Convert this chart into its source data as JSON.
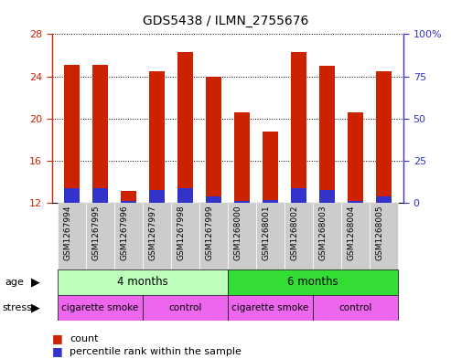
{
  "title": "GDS5438 / ILMN_2755676",
  "samples": [
    "GSM1267994",
    "GSM1267995",
    "GSM1267996",
    "GSM1267997",
    "GSM1267998",
    "GSM1267999",
    "GSM1268000",
    "GSM1268001",
    "GSM1268002",
    "GSM1268003",
    "GSM1268004",
    "GSM1268005"
  ],
  "count_values": [
    25.1,
    25.1,
    13.1,
    24.5,
    26.3,
    24.0,
    20.6,
    18.8,
    26.3,
    25.0,
    20.6,
    24.5
  ],
  "percentile_values": [
    13.4,
    13.4,
    12.2,
    13.2,
    13.4,
    12.6,
    12.2,
    12.3,
    13.4,
    13.2,
    12.2,
    12.6
  ],
  "ylim": [
    12,
    28
  ],
  "yticks_left": [
    12,
    16,
    20,
    24,
    28
  ],
  "yticks_right": [
    0,
    25,
    50,
    75,
    100
  ],
  "bar_color": "#cc2200",
  "percentile_color": "#3333cc",
  "age_4_color": "#bbffbb",
  "age_6_color": "#33dd33",
  "stress_smoke_color": "#ee66ee",
  "stress_control_color": "#ee66ee",
  "xlabel_bg_color": "#cccccc",
  "plot_bg_color": "#ffffff",
  "fig_bg_color": "#ffffff",
  "stress_labels": [
    "cigarette smoke",
    "control",
    "cigarette smoke",
    "control"
  ],
  "age_labels": [
    "4 months",
    "6 months"
  ]
}
